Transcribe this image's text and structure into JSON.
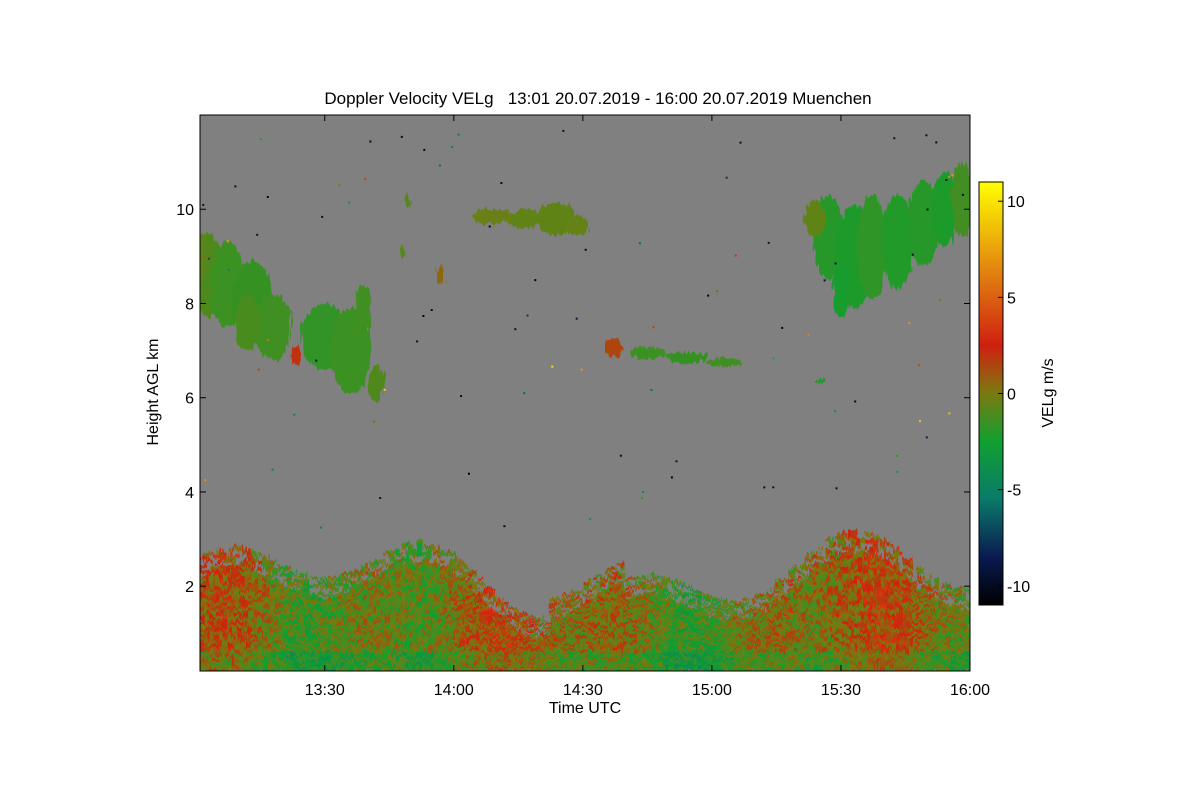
{
  "chart_data": {
    "type": "heatmap",
    "title": "Doppler Velocity VELg   13:01 20.07.2019 - 16:00 20.07.2019 Muenchen",
    "xlabel": "Time UTC",
    "ylabel": "Height AGL km",
    "x_ticks": [
      {
        "value": 13.5,
        "label": "13:30"
      },
      {
        "value": 14.0,
        "label": "14:00"
      },
      {
        "value": 14.5,
        "label": "14:30"
      },
      {
        "value": 15.0,
        "label": "15:00"
      },
      {
        "value": 15.5,
        "label": "15:30"
      },
      {
        "value": 16.0,
        "label": "16:00"
      }
    ],
    "y_ticks": [
      {
        "value": 2,
        "label": "2"
      },
      {
        "value": 4,
        "label": "4"
      },
      {
        "value": 6,
        "label": "6"
      },
      {
        "value": 8,
        "label": "8"
      },
      {
        "value": 10,
        "label": "10"
      }
    ],
    "xlim": [
      13.0167,
      16.0
    ],
    "ylim": [
      0.2,
      12.0
    ],
    "background_color": "#808080",
    "colorbar": {
      "label": "VELg m/s",
      "range": [
        -11,
        11
      ],
      "ticks": [
        {
          "value": 10,
          "label": "10"
        },
        {
          "value": 5,
          "label": "5"
        },
        {
          "value": 0,
          "label": "0"
        },
        {
          "value": -5,
          "label": "-5"
        },
        {
          "value": -10,
          "label": "-10"
        }
      ],
      "stops": [
        {
          "value": -11,
          "color": "#000000"
        },
        {
          "value": -8.5,
          "color": "#0a1a50"
        },
        {
          "value": -5.5,
          "color": "#0a7a6a"
        },
        {
          "value": -2.5,
          "color": "#10a030"
        },
        {
          "value": 0,
          "color": "#7a7a10"
        },
        {
          "value": 2.5,
          "color": "#d02010"
        },
        {
          "value": 6,
          "color": "#e07a10"
        },
        {
          "value": 11,
          "color": "#ffff00"
        }
      ]
    },
    "features": [
      {
        "name": "boundary-layer",
        "t_start": 13.0167,
        "t_end": 16.0,
        "h_bottom": 0.2,
        "h_top": 2.8,
        "velocity_range": [
          -3,
          3
        ]
      },
      {
        "name": "cirrus-left",
        "t_start": 13.0167,
        "t_end": 13.73,
        "h_bottom": 5.8,
        "h_top": 9.6,
        "velocity": -1.5
      },
      {
        "name": "cirrus-upper-mid",
        "t_start": 14.07,
        "t_end": 14.53,
        "h_bottom": 9.4,
        "h_top": 10.3,
        "velocity": -0.5
      },
      {
        "name": "cloud-mid-level",
        "t_start": 14.6,
        "t_end": 15.15,
        "h_bottom": 6.6,
        "h_top": 7.2,
        "velocity": -1.5
      },
      {
        "name": "cirrus-right",
        "t_start": 15.35,
        "t_end": 16.0,
        "h_bottom": 7.7,
        "h_top": 11.0,
        "velocity": -2.0
      }
    ]
  }
}
